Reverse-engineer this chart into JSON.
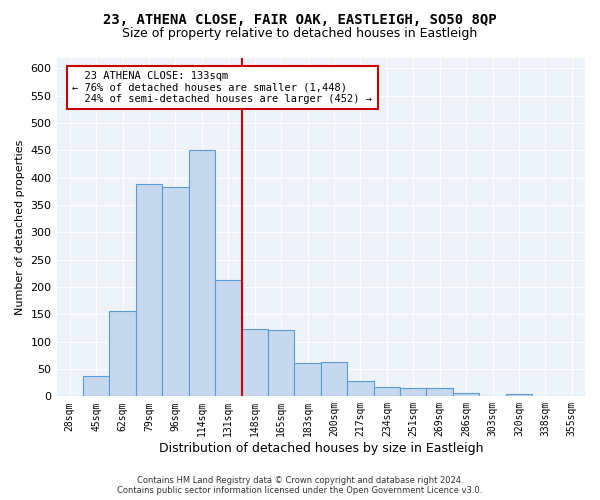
{
  "title": "23, ATHENA CLOSE, FAIR OAK, EASTLEIGH, SO50 8QP",
  "subtitle": "Size of property relative to detached houses in Eastleigh",
  "xlabel": "Distribution of detached houses by size in Eastleigh",
  "ylabel": "Number of detached properties",
  "bar_color": "#c5d8ed",
  "bar_edge_color": "#5b9bd5",
  "bar_values": [
    0,
    38,
    157,
    388,
    383,
    450,
    213,
    123,
    122,
    61,
    62,
    28,
    17,
    15,
    15,
    7,
    0,
    5,
    0,
    0
  ],
  "bin_labels": [
    "28sqm",
    "45sqm",
    "62sqm",
    "79sqm",
    "96sqm",
    "114sqm",
    "131sqm",
    "148sqm",
    "165sqm",
    "183sqm",
    "200sqm",
    "217sqm",
    "234sqm",
    "251sqm",
    "269sqm",
    "286sqm",
    "303sqm",
    "320sqm",
    "338sqm",
    "355sqm"
  ],
  "property_label": "23 ATHENA CLOSE: 133sqm",
  "pct_smaller": 76,
  "n_smaller": 1448,
  "pct_larger_semi": 24,
  "n_larger_semi": 452,
  "vline_x": 6.5,
  "annotation_box_color": "#ffffff",
  "annotation_box_edge": "#cc0000",
  "vline_color": "#cc0000",
  "background_color": "#eef2f9",
  "grid_color": "#ffffff",
  "ylim": [
    0,
    620
  ],
  "yticks": [
    0,
    50,
    100,
    150,
    200,
    250,
    300,
    350,
    400,
    450,
    500,
    550,
    600
  ],
  "footer_line1": "Contains HM Land Registry data © Crown copyright and database right 2024.",
  "footer_line2": "Contains public sector information licensed under the Open Government Licence v3.0."
}
